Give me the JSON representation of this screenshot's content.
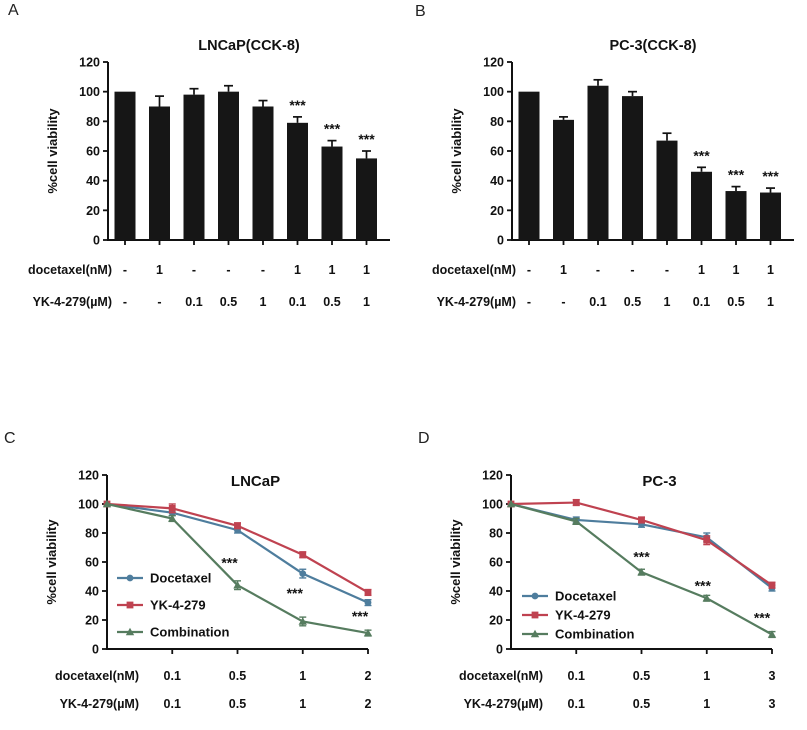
{
  "figure": {
    "background": "#ffffff",
    "text_color": "#111111"
  },
  "panels": [
    {
      "letter": "A"
    },
    {
      "letter": "B"
    },
    {
      "letter": "C"
    },
    {
      "letter": "D"
    }
  ],
  "chart_data": [
    {
      "type": "bar",
      "title": "LNCaP(CCK-8)",
      "ylabel": "%cell viability",
      "ylim": [
        0,
        120
      ],
      "yticks": [
        0,
        20,
        40,
        60,
        80,
        100,
        120
      ],
      "bar_color": "#161616",
      "values": [
        100,
        90,
        98,
        100,
        90,
        79,
        63,
        55
      ],
      "errors": [
        0,
        7,
        4,
        4,
        4,
        4,
        4,
        5
      ],
      "significance": [
        "",
        "",
        "",
        "",
        "",
        "***",
        "***",
        "***"
      ],
      "dose_rows": [
        {
          "label": "docetaxel(nM)",
          "values": [
            "-",
            "1",
            "-",
            "-",
            "-",
            "1",
            "1",
            "1"
          ]
        },
        {
          "label": "YK-4-279(µM)",
          "values": [
            "-",
            "-",
            "0.1",
            "0.5",
            "1",
            "0.1",
            "0.5",
            "1"
          ]
        }
      ]
    },
    {
      "type": "bar",
      "title": "PC-3(CCK-8)",
      "ylabel": "%cell viability",
      "ylim": [
        0,
        120
      ],
      "yticks": [
        0,
        20,
        40,
        60,
        80,
        100,
        120
      ],
      "bar_color": "#161616",
      "values": [
        100,
        81,
        104,
        97,
        67,
        46,
        33,
        32
      ],
      "errors": [
        0,
        2,
        4,
        3,
        5,
        3,
        3,
        3
      ],
      "significance": [
        "",
        "",
        "",
        "",
        "",
        "***",
        "***",
        "***"
      ],
      "dose_rows": [
        {
          "label": "docetaxel(nM)",
          "values": [
            "-",
            "1",
            "-",
            "-",
            "-",
            "1",
            "1",
            "1"
          ]
        },
        {
          "label": "YK-4-279(µM)",
          "values": [
            "-",
            "-",
            "0.1",
            "0.5",
            "1",
            "0.1",
            "0.5",
            "1"
          ]
        }
      ]
    },
    {
      "type": "line",
      "title": "LNCaP",
      "ylabel": "%cell viability",
      "ylim": [
        0,
        120
      ],
      "yticks": [
        0,
        20,
        40,
        60,
        80,
        100,
        120
      ],
      "x_tick_labels": [
        "0.1",
        "0.5",
        "1",
        "2"
      ],
      "legend_position": "inside-left",
      "series": [
        {
          "name": "Docetaxel",
          "marker": "circle",
          "color": "#4e7d9d",
          "values": [
            100,
            94,
            82,
            52,
            32
          ],
          "errors": [
            0,
            2,
            2,
            3,
            2
          ]
        },
        {
          "name": "YK-4-279",
          "marker": "square",
          "color": "#bf4250",
          "values": [
            100,
            97,
            85,
            65,
            39
          ],
          "errors": [
            0,
            3,
            2,
            2,
            2
          ]
        },
        {
          "name": "Combination",
          "marker": "triangle",
          "color": "#567c5f",
          "values": [
            100,
            90,
            44,
            19,
            11
          ],
          "errors": [
            0,
            2,
            3,
            3,
            2
          ]
        }
      ],
      "significance": [
        {
          "point": 2,
          "y": 59,
          "dx": -8,
          "text": "***"
        },
        {
          "point": 3,
          "y": 38,
          "dx": -8,
          "text": "***"
        },
        {
          "point": 4,
          "y": 22,
          "dx": -8,
          "text": "***"
        }
      ],
      "dose_rows": [
        {
          "label": "docetaxel(nM)",
          "values": [
            "0.1",
            "0.5",
            "1",
            "2"
          ]
        },
        {
          "label": "YK-4-279(µM)",
          "values": [
            "0.1",
            "0.5",
            "1",
            "2"
          ]
        }
      ]
    },
    {
      "type": "line",
      "title": "PC-3",
      "ylabel": "%cell viability",
      "ylim": [
        0,
        120
      ],
      "yticks": [
        0,
        20,
        40,
        60,
        80,
        100,
        120
      ],
      "x_tick_labels": [
        "0.1",
        "0.5",
        "1",
        "3"
      ],
      "legend_position": "inside-left",
      "series": [
        {
          "name": "Docetaxel",
          "marker": "circle",
          "color": "#4e7d9d",
          "values": [
            100,
            89,
            86,
            77,
            42
          ],
          "errors": [
            0,
            2,
            2,
            3,
            2
          ]
        },
        {
          "name": "YK-4-279",
          "marker": "square",
          "color": "#bf4250",
          "values": [
            100,
            101,
            89,
            75,
            44
          ],
          "errors": [
            0,
            2,
            2,
            3,
            2
          ]
        },
        {
          "name": "Combination",
          "marker": "triangle",
          "color": "#567c5f",
          "values": [
            100,
            88,
            53,
            35,
            10
          ],
          "errors": [
            0,
            2,
            2,
            2,
            2
          ]
        }
      ],
      "significance": [
        {
          "point": 2,
          "y": 63,
          "dx": 0,
          "text": "***"
        },
        {
          "point": 3,
          "y": 43,
          "dx": -4,
          "text": "***"
        },
        {
          "point": 4,
          "y": 21,
          "dx": -10,
          "text": "***"
        }
      ],
      "dose_rows": [
        {
          "label": "docetaxel(nM)",
          "values": [
            "0.1",
            "0.5",
            "1",
            "3"
          ]
        },
        {
          "label": "YK-4-279(µM)",
          "values": [
            "0.1",
            "0.5",
            "1",
            "3"
          ]
        }
      ]
    }
  ]
}
